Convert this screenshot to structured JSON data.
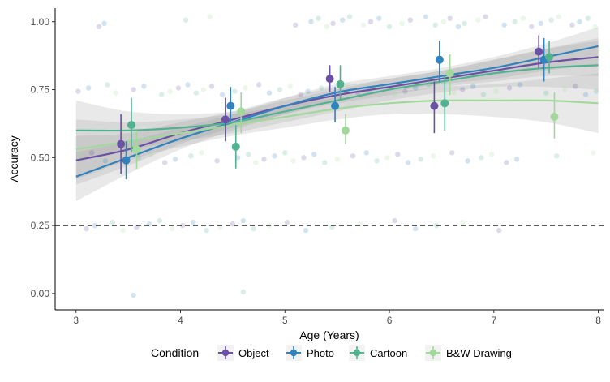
{
  "chart_data": {
    "type": "scatter",
    "xlabel": "Age (Years)",
    "ylabel": "Accuracy",
    "xlim": [
      2.8,
      8.05
    ],
    "ylim": [
      -0.06,
      1.05
    ],
    "x_ticks": [
      3,
      4,
      5,
      6,
      7,
      8
    ],
    "x_tick_labels": [
      "3",
      "4",
      "5",
      "6",
      "7",
      "8"
    ],
    "y_ticks": [
      0,
      0.25,
      0.5,
      0.75,
      1
    ],
    "y_tick_labels": [
      "0.00",
      "0.25",
      "0.50",
      "0.75",
      "1.00"
    ],
    "grid": false,
    "chance_line": 0.25,
    "legend": {
      "title": "Condition",
      "position": "bottom",
      "entries": [
        "Object",
        "Photo",
        "Cartoon",
        "B&W Drawing"
      ]
    },
    "series": [
      {
        "name": "Object",
        "color": "#6a51a3",
        "points": [
          {
            "age": 3.43,
            "mean": 0.55,
            "lo": 0.44,
            "hi": 0.66
          },
          {
            "age": 4.43,
            "mean": 0.64,
            "lo": 0.56,
            "hi": 0.72
          },
          {
            "age": 5.43,
            "mean": 0.79,
            "lo": 0.74,
            "hi": 0.84
          },
          {
            "age": 6.43,
            "mean": 0.69,
            "lo": 0.59,
            "hi": 0.78
          },
          {
            "age": 7.43,
            "mean": 0.89,
            "lo": 0.83,
            "hi": 0.95
          }
        ],
        "fit": [
          {
            "age": 3.0,
            "value": 0.49
          },
          {
            "age": 3.5,
            "value": 0.53
          },
          {
            "age": 4.0,
            "value": 0.59
          },
          {
            "age": 4.5,
            "value": 0.64
          },
          {
            "age": 5.0,
            "value": 0.69
          },
          {
            "age": 5.5,
            "value": 0.73
          },
          {
            "age": 6.0,
            "value": 0.76
          },
          {
            "age": 6.5,
            "value": 0.79
          },
          {
            "age": 7.0,
            "value": 0.82
          },
          {
            "age": 7.5,
            "value": 0.85
          },
          {
            "age": 8.0,
            "value": 0.87
          }
        ],
        "band_halfwidth": [
          0.09,
          0.06,
          0.04,
          0.03,
          0.03,
          0.03,
          0.03,
          0.03,
          0.04,
          0.05,
          0.07
        ]
      },
      {
        "name": "Photo",
        "color": "#3182bd",
        "points": [
          {
            "age": 3.48,
            "mean": 0.49,
            "lo": 0.42,
            "hi": 0.56
          },
          {
            "age": 4.48,
            "mean": 0.69,
            "lo": 0.63,
            "hi": 0.76
          },
          {
            "age": 5.48,
            "mean": 0.69,
            "lo": 0.63,
            "hi": 0.76
          },
          {
            "age": 6.48,
            "mean": 0.86,
            "lo": 0.78,
            "hi": 0.93
          },
          {
            "age": 7.48,
            "mean": 0.86,
            "lo": 0.78,
            "hi": 0.94
          }
        ],
        "fit": [
          {
            "age": 3.0,
            "value": 0.43
          },
          {
            "age": 3.5,
            "value": 0.5
          },
          {
            "age": 4.0,
            "value": 0.57
          },
          {
            "age": 4.5,
            "value": 0.63
          },
          {
            "age": 5.0,
            "value": 0.69
          },
          {
            "age": 5.5,
            "value": 0.74
          },
          {
            "age": 6.0,
            "value": 0.77
          },
          {
            "age": 6.5,
            "value": 0.8
          },
          {
            "age": 7.0,
            "value": 0.83
          },
          {
            "age": 7.5,
            "value": 0.87
          },
          {
            "age": 8.0,
            "value": 0.91
          }
        ],
        "band_halfwidth": [
          0.09,
          0.06,
          0.04,
          0.03,
          0.03,
          0.03,
          0.03,
          0.03,
          0.04,
          0.05,
          0.07
        ]
      },
      {
        "name": "Cartoon",
        "color": "#52b290",
        "points": [
          {
            "age": 3.53,
            "mean": 0.62,
            "lo": 0.52,
            "hi": 0.72
          },
          {
            "age": 4.53,
            "mean": 0.54,
            "lo": 0.46,
            "hi": 0.62
          },
          {
            "age": 5.53,
            "mean": 0.77,
            "lo": 0.71,
            "hi": 0.84
          },
          {
            "age": 6.53,
            "mean": 0.7,
            "lo": 0.6,
            "hi": 0.8
          },
          {
            "age": 7.53,
            "mean": 0.87,
            "lo": 0.81,
            "hi": 0.93
          }
        ],
        "fit": [
          {
            "age": 3.0,
            "value": 0.6
          },
          {
            "age": 3.5,
            "value": 0.6
          },
          {
            "age": 4.0,
            "value": 0.61
          },
          {
            "age": 4.5,
            "value": 0.63
          },
          {
            "age": 5.0,
            "value": 0.67
          },
          {
            "age": 5.5,
            "value": 0.71
          },
          {
            "age": 6.0,
            "value": 0.75
          },
          {
            "age": 6.5,
            "value": 0.78
          },
          {
            "age": 7.0,
            "value": 0.81
          },
          {
            "age": 7.5,
            "value": 0.83
          },
          {
            "age": 8.0,
            "value": 0.84
          }
        ],
        "band_halfwidth": [
          0.11,
          0.07,
          0.05,
          0.04,
          0.04,
          0.04,
          0.04,
          0.04,
          0.05,
          0.07,
          0.09
        ]
      },
      {
        "name": "B&W Drawing",
        "color": "#a1d99b",
        "points": [
          {
            "age": 3.58,
            "mean": 0.53,
            "lo": 0.46,
            "hi": 0.6
          },
          {
            "age": 4.58,
            "mean": 0.67,
            "lo": 0.59,
            "hi": 0.74
          },
          {
            "age": 5.58,
            "mean": 0.6,
            "lo": 0.55,
            "hi": 0.66
          },
          {
            "age": 6.58,
            "mean": 0.81,
            "lo": 0.73,
            "hi": 0.88
          },
          {
            "age": 7.58,
            "mean": 0.65,
            "lo": 0.57,
            "hi": 0.74
          }
        ],
        "fit": [
          {
            "age": 3.0,
            "value": 0.53
          },
          {
            "age": 3.5,
            "value": 0.56
          },
          {
            "age": 4.0,
            "value": 0.59
          },
          {
            "age": 4.5,
            "value": 0.62
          },
          {
            "age": 5.0,
            "value": 0.65
          },
          {
            "age": 5.5,
            "value": 0.68
          },
          {
            "age": 6.0,
            "value": 0.7
          },
          {
            "age": 6.5,
            "value": 0.71
          },
          {
            "age": 7.0,
            "value": 0.71
          },
          {
            "age": 7.5,
            "value": 0.71
          },
          {
            "age": 8.0,
            "value": 0.7
          }
        ],
        "band_halfwidth": [
          0.11,
          0.07,
          0.05,
          0.04,
          0.04,
          0.04,
          0.04,
          0.05,
          0.06,
          0.08,
          0.11
        ]
      }
    ],
    "raw_points_color": "#9aa6c8",
    "raw_points": [
      [
        3.22,
        1.0
      ],
      [
        3.27,
        1.0
      ],
      [
        4.05,
        1.0
      ],
      [
        4.28,
        1.0
      ],
      [
        5.1,
        1.0
      ],
      [
        5.25,
        1.0
      ],
      [
        5.32,
        1.0
      ],
      [
        5.4,
        1.0
      ],
      [
        5.46,
        1.0
      ],
      [
        5.55,
        1.0
      ],
      [
        5.62,
        1.0
      ],
      [
        5.75,
        1.0
      ],
      [
        5.82,
        1.0
      ],
      [
        5.9,
        1.0
      ],
      [
        6.0,
        1.0
      ],
      [
        6.12,
        1.0
      ],
      [
        6.2,
        1.0
      ],
      [
        6.35,
        1.0
      ],
      [
        6.44,
        1.0
      ],
      [
        6.52,
        1.0
      ],
      [
        6.58,
        1.0
      ],
      [
        6.66,
        1.0
      ],
      [
        6.72,
        1.0
      ],
      [
        6.85,
        1.0
      ],
      [
        6.92,
        1.0
      ],
      [
        7.1,
        1.0
      ],
      [
        7.2,
        1.0
      ],
      [
        7.28,
        1.0
      ],
      [
        7.36,
        1.0
      ],
      [
        7.45,
        1.0
      ],
      [
        7.55,
        1.0
      ],
      [
        7.62,
        1.0
      ],
      [
        7.75,
        1.0
      ],
      [
        7.82,
        1.0
      ],
      [
        7.9,
        1.0
      ],
      [
        7.97,
        1.0
      ],
      [
        3.02,
        0.75
      ],
      [
        3.12,
        0.75
      ],
      [
        3.3,
        0.75
      ],
      [
        3.38,
        0.75
      ],
      [
        3.55,
        0.75
      ],
      [
        3.65,
        0.75
      ],
      [
        3.82,
        0.75
      ],
      [
        3.9,
        0.75
      ],
      [
        3.98,
        0.75
      ],
      [
        4.07,
        0.75
      ],
      [
        4.15,
        0.75
      ],
      [
        4.22,
        0.75
      ],
      [
        4.3,
        0.75
      ],
      [
        4.4,
        0.75
      ],
      [
        4.52,
        0.75
      ],
      [
        4.62,
        0.75
      ],
      [
        4.75,
        0.75
      ],
      [
        4.85,
        0.75
      ],
      [
        4.95,
        0.75
      ],
      [
        5.05,
        0.75
      ],
      [
        5.15,
        0.75
      ],
      [
        5.22,
        0.75
      ],
      [
        5.35,
        0.75
      ],
      [
        5.6,
        0.75
      ],
      [
        5.7,
        0.75
      ],
      [
        5.8,
        0.75
      ],
      [
        5.92,
        0.75
      ],
      [
        6.05,
        0.75
      ],
      [
        6.15,
        0.75
      ],
      [
        6.25,
        0.75
      ],
      [
        6.38,
        0.75
      ],
      [
        6.62,
        0.75
      ],
      [
        6.7,
        0.75
      ],
      [
        6.8,
        0.75
      ],
      [
        6.9,
        0.75
      ],
      [
        7.02,
        0.75
      ],
      [
        7.15,
        0.75
      ],
      [
        7.25,
        0.75
      ],
      [
        7.5,
        0.75
      ],
      [
        7.68,
        0.75
      ],
      [
        7.78,
        0.75
      ],
      [
        7.88,
        0.75
      ],
      [
        7.98,
        0.75
      ],
      [
        3.03,
        0.5
      ],
      [
        3.15,
        0.5
      ],
      [
        3.28,
        0.5
      ],
      [
        3.6,
        0.5
      ],
      [
        3.72,
        0.5
      ],
      [
        3.85,
        0.5
      ],
      [
        3.95,
        0.5
      ],
      [
        4.1,
        0.5
      ],
      [
        4.2,
        0.5
      ],
      [
        4.35,
        0.5
      ],
      [
        4.55,
        0.5
      ],
      [
        4.65,
        0.5
      ],
      [
        4.72,
        0.5
      ],
      [
        4.8,
        0.5
      ],
      [
        4.9,
        0.5
      ],
      [
        5.0,
        0.5
      ],
      [
        5.08,
        0.5
      ],
      [
        5.18,
        0.5
      ],
      [
        5.28,
        0.5
      ],
      [
        5.38,
        0.5
      ],
      [
        5.5,
        0.5
      ],
      [
        5.65,
        0.5
      ],
      [
        5.78,
        0.5
      ],
      [
        5.88,
        0.5
      ],
      [
        5.98,
        0.5
      ],
      [
        6.08,
        0.5
      ],
      [
        6.18,
        0.5
      ],
      [
        6.3,
        0.5
      ],
      [
        6.42,
        0.5
      ],
      [
        6.6,
        0.5
      ],
      [
        6.75,
        0.5
      ],
      [
        6.88,
        0.5
      ],
      [
        6.98,
        0.5
      ],
      [
        7.12,
        0.5
      ],
      [
        7.22,
        0.5
      ],
      [
        7.6,
        0.5
      ],
      [
        7.95,
        0.5
      ],
      [
        3.1,
        0.25
      ],
      [
        3.18,
        0.25
      ],
      [
        3.35,
        0.25
      ],
      [
        3.45,
        0.25
      ],
      [
        3.58,
        0.25
      ],
      [
        3.7,
        0.25
      ],
      [
        3.8,
        0.25
      ],
      [
        3.92,
        0.25
      ],
      [
        4.02,
        0.25
      ],
      [
        4.12,
        0.25
      ],
      [
        4.25,
        0.25
      ],
      [
        4.38,
        0.25
      ],
      [
        4.5,
        0.25
      ],
      [
        4.6,
        0.25
      ],
      [
        4.7,
        0.25
      ],
      [
        4.85,
        0.25
      ],
      [
        5.02,
        0.25
      ],
      [
        5.2,
        0.25
      ],
      [
        5.45,
        0.25
      ],
      [
        5.72,
        0.25
      ],
      [
        6.05,
        0.25
      ],
      [
        6.25,
        0.25
      ],
      [
        6.45,
        0.25
      ],
      [
        6.7,
        0.25
      ],
      [
        7.05,
        0.25
      ],
      [
        3.55,
        0.0
      ],
      [
        4.6,
        0.0
      ]
    ]
  }
}
